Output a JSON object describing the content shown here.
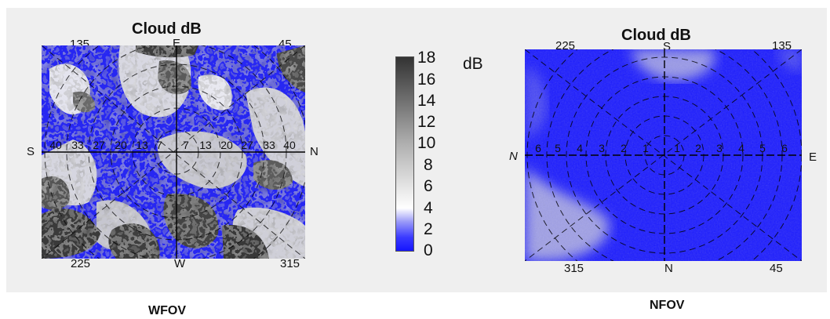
{
  "wfov": {
    "title": "Cloud dB",
    "caption": "WFOV",
    "compass": {
      "top": "E",
      "bottom": "W",
      "left": "S",
      "right": "N"
    },
    "corners": {
      "top_left": "135",
      "top_right": "45",
      "bottom_left": "225",
      "bottom_right": "315"
    },
    "ring_labels_left": [
      "40",
      "33",
      "27",
      "20",
      "13",
      "7"
    ],
    "ring_labels_right": [
      "7",
      "13",
      "20",
      "27",
      "33",
      "40"
    ]
  },
  "nfov": {
    "title": "Cloud dB",
    "caption": "NFOV",
    "compass": {
      "top": "S",
      "bottom": "N",
      "left": "N",
      "right": "E"
    },
    "corners": {
      "top_left": "225",
      "top_right": "135",
      "bottom_left": "315",
      "bottom_right": "45"
    },
    "ring_labels_left": [
      "6",
      "5",
      "4",
      "3",
      "2",
      "1"
    ],
    "ring_labels_right": [
      "1",
      "2",
      "3",
      "4",
      "5",
      "6"
    ]
  },
  "colorbar": {
    "unit": "dB",
    "ticks": [
      "18",
      "16",
      "14",
      "12",
      "10",
      "8",
      "6",
      "4",
      "2",
      "0"
    ],
    "min": 0,
    "max": 18,
    "colors": {
      "low": "#1515ff",
      "mid": "#ffffff",
      "high": "#3a3a3a"
    }
  }
}
